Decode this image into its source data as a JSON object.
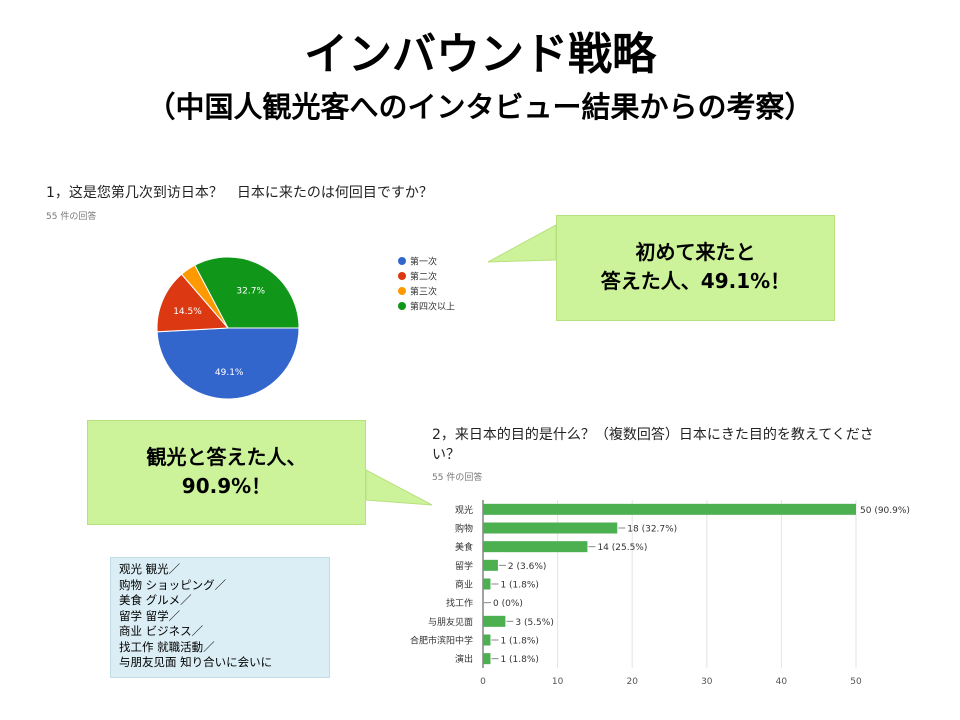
{
  "title": "インバウンド戦略",
  "subtitle": "（中国人観光客へのインタビュー結果からの考察）",
  "callouts": {
    "first_visit": [
      "初めて来たと",
      "答えた人、49.1%！"
    ],
    "sightseeing": [
      "観光と答えた人、",
      "90.9%！"
    ]
  },
  "glossary": [
    "观光 観光／",
    "购物 ショッピング／",
    "美食 グルメ／",
    "留学 留学／",
    "商业 ビジネス／",
    "找工作 就職活動／",
    "与朋友见面 知り合いに会いに"
  ],
  "chart_data": [
    {
      "type": "pie",
      "title": "1，这是您第几次到访日本？　日本に来たのは何回目ですか？",
      "subtitle": "55 件の回答",
      "labels": [
        "第一次",
        "第二次",
        "第三次",
        "第四次以上"
      ],
      "values": [
        49.1,
        14.5,
        3.6,
        32.7
      ],
      "slice_labels": [
        "49.1%",
        "14.5%",
        "",
        "32.7%"
      ],
      "colors": [
        "#3366cc",
        "#dc3912",
        "#ff9900",
        "#109618"
      ],
      "legend": "right"
    },
    {
      "type": "bar",
      "orientation": "horizontal",
      "title_lines": [
        "2，来日本的目的是什么？（複数回答）日本にきた目的を教えてくださ",
        "い？"
      ],
      "subtitle": "55 件の回答",
      "categories": [
        "观光",
        "购物",
        "美食",
        "留学",
        "商业",
        "找工作",
        "与朋友见面",
        "合肥市滨阳中学",
        "演出"
      ],
      "values": [
        50,
        18,
        14,
        2,
        1,
        0,
        3,
        1,
        1
      ],
      "data_labels": [
        "50 (90.9%)",
        "18 (32.7%)",
        "14 (25.5%)",
        "2 (3.6%)",
        "1 (1.8%)",
        "0 (0%)",
        "3 (5.5%)",
        "1 (1.8%)",
        "1 (1.8%)"
      ],
      "xlim": [
        0,
        50
      ],
      "xticks": [
        0,
        10,
        20,
        30,
        40,
        50
      ],
      "color": "#4caf50",
      "grid": true
    }
  ]
}
